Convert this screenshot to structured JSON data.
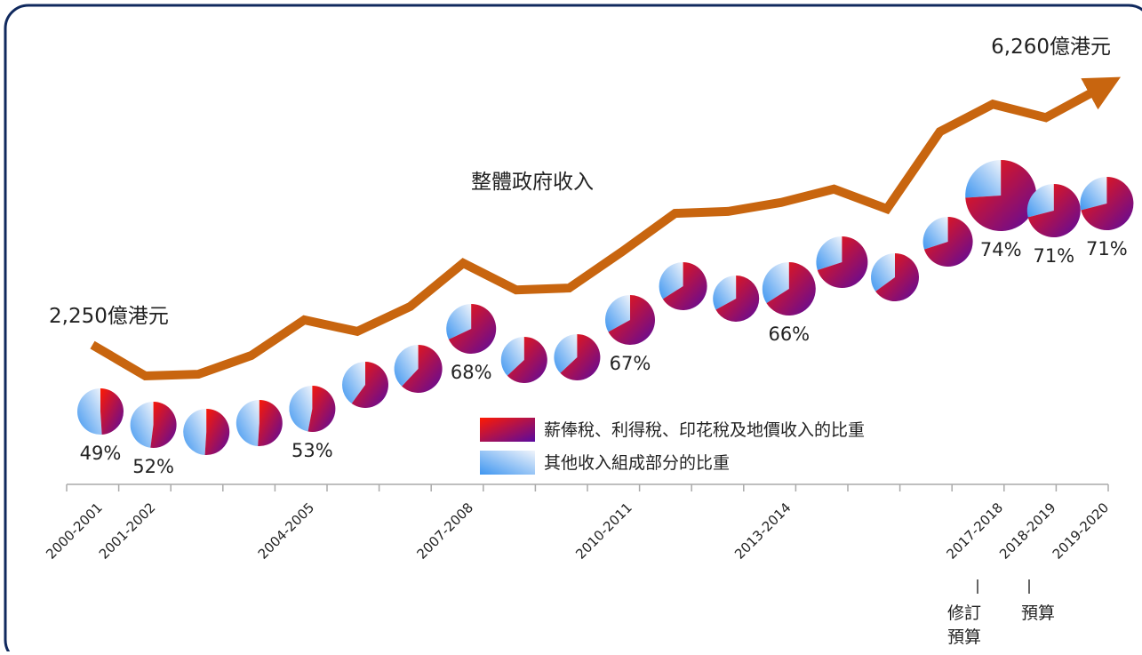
{
  "chart_data": {
    "type": "line",
    "categories": [
      "2000-2001",
      "2001-2002",
      null,
      null,
      "2004-2005",
      null,
      null,
      "2007-2008",
      null,
      null,
      "2010-2011",
      null,
      null,
      "2013-2014",
      null,
      null,
      null,
      "2017-2018",
      "2018-2019",
      "2019-2020"
    ],
    "series": [
      {
        "name": "整體政府收入",
        "color": "#c8650f",
        "values": [
          2250,
          1763,
          1790,
          2083,
          2640,
          2460,
          2850,
          3530,
          3110,
          3140,
          3710,
          4310,
          4340,
          4480,
          4690,
          4380,
          5590,
          6020,
          5810,
          6260
        ],
        "value_labels": [
          "2,250億港元",
          null,
          null,
          null,
          null,
          null,
          null,
          null,
          null,
          null,
          null,
          null,
          null,
          null,
          null,
          null,
          null,
          null,
          null,
          "6,260億港元"
        ]
      }
    ],
    "pies": {
      "values": [
        49,
        52,
        51,
        51,
        53,
        60,
        62,
        68,
        63,
        63,
        67,
        66,
        67,
        66,
        70,
        65,
        70,
        74,
        71,
        71
      ],
      "value_labels": [
        "49%",
        "52%",
        null,
        null,
        "53%",
        null,
        null,
        "68%",
        null,
        null,
        "67%",
        null,
        null,
        "66%",
        null,
        null,
        null,
        "74%",
        "71%",
        "71%"
      ],
      "legend": [
        "薪俸稅、利得稅、印花稅及地價收入的比重",
        "其他收入組成部分的比重"
      ]
    },
    "annotations": [
      [
        "修訂",
        "預算"
      ],
      [
        "預算"
      ]
    ]
  }
}
